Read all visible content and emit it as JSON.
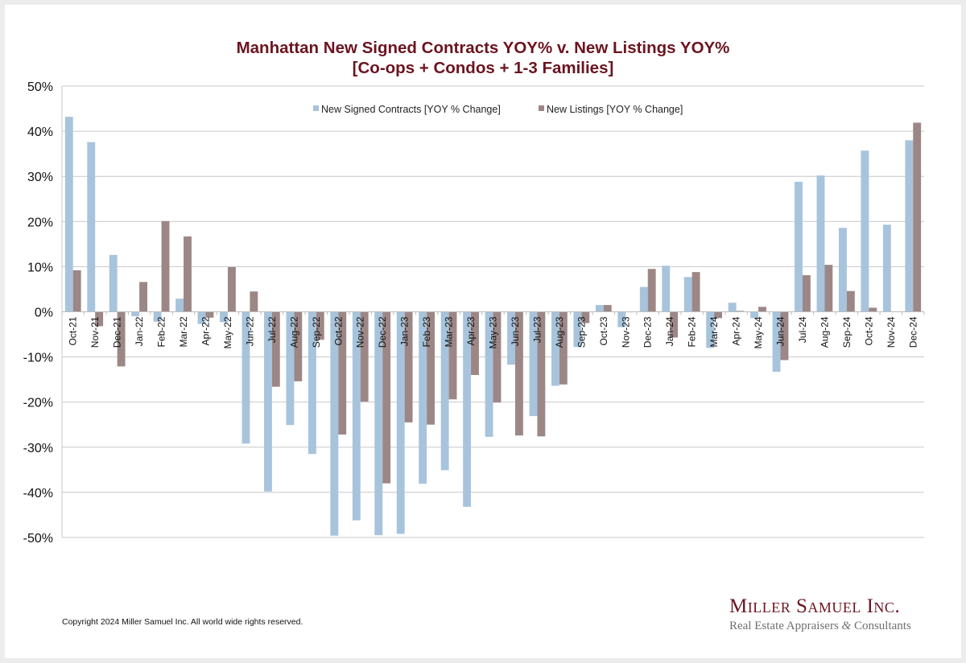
{
  "chart_data": {
    "type": "bar",
    "title": "Manhattan New Signed Contracts YOY% v. New Listings YOY%",
    "subtitle": "[Co-ops + Condos + 1-3 Families]",
    "xlabel": "",
    "ylabel": "",
    "ylim": [
      -50,
      50
    ],
    "yticks": [
      50,
      40,
      30,
      20,
      10,
      0,
      -10,
      -20,
      -30,
      -40,
      -50
    ],
    "ytick_labels": [
      "50%",
      "40%",
      "30%",
      "20%",
      "10%",
      "0%",
      "-10%",
      "-20%",
      "-30%",
      "-40%",
      "-50%"
    ],
    "grid": true,
    "legend_position": "top-center",
    "categories": [
      "Oct-21",
      "Nov-21",
      "Dec-21",
      "Jan-22",
      "Feb-22",
      "Mar-22",
      "Apr-22",
      "May-22",
      "Jun-22",
      "Jul-22",
      "Aug-22",
      "Sep-22",
      "Oct-22",
      "Nov-22",
      "Dec-22",
      "Jan-23",
      "Feb-23",
      "Mar-23",
      "Apr-23",
      "May-23",
      "Jun-23",
      "Jul-23",
      "Aug-23",
      "Sep-23",
      "Oct-23",
      "Nov-23",
      "Dec-23",
      "Jan-24",
      "Feb-24",
      "Mar-24",
      "Apr-24",
      "May-24",
      "Jun-24",
      "Jul-24",
      "Aug-24",
      "Sep-24",
      "Oct-24",
      "Nov-24",
      "Dec-24"
    ],
    "series": [
      {
        "name": "New Signed Contracts [YOY % Change]",
        "color": "#a7c4dc",
        "values": [
          43.2,
          37.6,
          12.6,
          -1.0,
          -2.2,
          2.9,
          -2.7,
          -2.3,
          -29.2,
          -39.8,
          -25.1,
          -31.5,
          -49.6,
          -46.2,
          -49.5,
          -49.2,
          -38.1,
          -35.1,
          -43.2,
          -27.7,
          -11.7,
          -23.1,
          -16.4,
          -7.8,
          1.5,
          -3.4,
          5.5,
          10.2,
          7.7,
          -8.0,
          2.0,
          -1.4,
          -13.3,
          28.8,
          30.2,
          18.6,
          35.7,
          19.3,
          38.0
        ]
      },
      {
        "name": "New Listings [YOY % Change]",
        "color": "#9c8786",
        "values": [
          9.2,
          -3.2,
          -12.1,
          6.6,
          20.1,
          16.7,
          -1.3,
          9.9,
          4.5,
          -16.6,
          -15.4,
          -6.2,
          -27.2,
          -19.9,
          -38.0,
          -24.5,
          -25.0,
          -19.4,
          -14.0,
          -20.1,
          -27.4,
          -27.6,
          -16.1,
          -2.5,
          1.5,
          0.0,
          9.5,
          -5.7,
          8.8,
          -1.4,
          0.2,
          1.1,
          -10.7,
          8.1,
          10.4,
          4.6,
          0.9,
          0.1,
          41.9
        ]
      }
    ]
  },
  "footer": {
    "copyright": "Copyright 2024 Miller Samuel Inc.  All world wide rights reserved.",
    "brand_name": "Miller Samuel Inc.",
    "brand_tagline_part1": "Real Estate Appraisers ",
    "brand_tagline_amp": "&",
    "brand_tagline_part2": " Consultants"
  },
  "colors": {
    "title": "#6b1420",
    "gridline": "#c8c8c8",
    "frame": "#ececec"
  }
}
